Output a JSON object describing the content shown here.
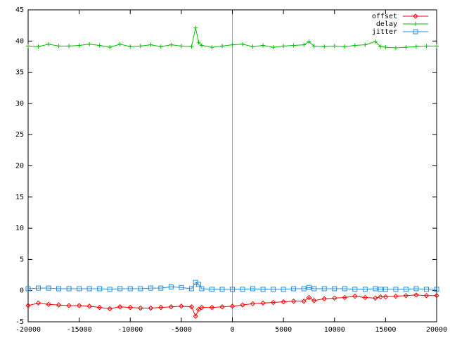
{
  "chart_data": {
    "type": "line",
    "x": [
      -20000,
      -19000,
      -18000,
      -17000,
      -16000,
      -15000,
      -14000,
      -13000,
      -12000,
      -11000,
      -10000,
      -9000,
      -8000,
      -7000,
      -6000,
      -5000,
      -4000,
      -3600,
      -3300,
      -3000,
      -2000,
      -1000,
      0,
      1000,
      2000,
      3000,
      4000,
      5000,
      6000,
      7000,
      7500,
      8000,
      9000,
      10000,
      11000,
      12000,
      13000,
      14000,
      14500,
      15000,
      16000,
      17000,
      18000,
      19000,
      20000
    ],
    "series": [
      {
        "name": "offset",
        "color": "#ff0000",
        "marker": "diamond",
        "values": [
          -2.4,
          -2.0,
          -2.2,
          -2.3,
          -2.4,
          -2.4,
          -2.5,
          -2.7,
          -2.9,
          -2.6,
          -2.7,
          -2.8,
          -2.8,
          -2.7,
          -2.6,
          -2.5,
          -2.6,
          -4.1,
          -3.0,
          -2.7,
          -2.7,
          -2.6,
          -2.5,
          -2.3,
          -2.1,
          -2.0,
          -1.9,
          -1.8,
          -1.7,
          -1.7,
          -1.1,
          -1.6,
          -1.3,
          -1.2,
          -1.1,
          -0.9,
          -1.1,
          -1.2,
          -1.0,
          -1.0,
          -0.9,
          -0.8,
          -0.7,
          -0.8,
          -0.8
        ]
      },
      {
        "name": "delay",
        "color": "#00c000",
        "marker": "plus",
        "values": [
          39.2,
          39.1,
          39.5,
          39.2,
          39.2,
          39.3,
          39.5,
          39.3,
          39.0,
          39.5,
          39.1,
          39.2,
          39.4,
          39.1,
          39.4,
          39.2,
          39.1,
          42.1,
          39.8,
          39.3,
          39.0,
          39.2,
          39.4,
          39.5,
          39.1,
          39.3,
          39.0,
          39.2,
          39.3,
          39.4,
          39.9,
          39.2,
          39.1,
          39.2,
          39.1,
          39.3,
          39.4,
          39.9,
          39.1,
          39.0,
          38.9,
          39.0,
          39.1,
          39.2,
          39.2
        ]
      },
      {
        "name": "jitter",
        "color": "#1e8fe0",
        "marker": "square",
        "values": [
          0.3,
          0.4,
          0.4,
          0.3,
          0.3,
          0.3,
          0.3,
          0.3,
          0.2,
          0.3,
          0.3,
          0.3,
          0.4,
          0.4,
          0.6,
          0.5,
          0.3,
          1.3,
          1.0,
          0.3,
          0.2,
          0.2,
          0.2,
          0.2,
          0.3,
          0.2,
          0.2,
          0.2,
          0.3,
          0.3,
          0.5,
          0.3,
          0.3,
          0.3,
          0.3,
          0.2,
          0.2,
          0.3,
          0.2,
          0.2,
          0.2,
          0.2,
          0.3,
          0.2,
          0.2
        ]
      }
    ],
    "xlim": [
      -20000,
      20000
    ],
    "xticks": [
      -20000,
      -15000,
      -10000,
      -5000,
      0,
      5000,
      10000,
      15000,
      20000
    ],
    "ylim": [
      -5,
      45
    ],
    "yticks": [
      -5,
      0,
      5,
      10,
      15,
      20,
      25,
      30,
      35,
      40,
      45
    ],
    "zero_axis": true,
    "legend": "top-right"
  }
}
